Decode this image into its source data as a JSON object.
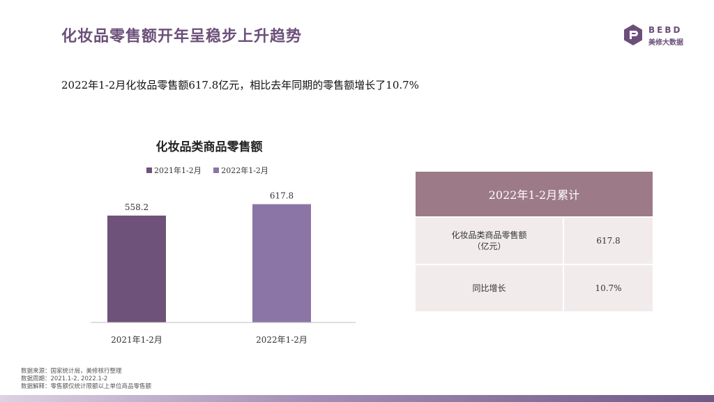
{
  "header": {
    "title": "化妆品零售额开年呈稳步上升趋势",
    "logo_text": "BEBD",
    "logo_sub": "美修大数据"
  },
  "summary": "2022年1-2月化妆品零售额617.8亿元，相比去年同期的零售额增长了10.7%",
  "chart_data": {
    "type": "bar",
    "title": "化妆品类商品零售额",
    "categories": [
      "2021年1-2月",
      "2022年1-2月"
    ],
    "values": [
      558.2,
      617.8
    ],
    "value_labels": [
      "558.2",
      "617.8"
    ],
    "legend": [
      "2021年1-2月",
      "2022年1-2月"
    ],
    "bar_colors": [
      "#6e5279",
      "#8b75a6"
    ],
    "ylim": [
      0,
      700
    ],
    "legend_position": "top",
    "grid": false
  },
  "table": {
    "header": "2022年1-2月累计",
    "rows": [
      {
        "label_line1": "化妆品类商品零售额",
        "label_line2": "（亿元）",
        "value": "617.8"
      },
      {
        "label_line1": "同比增长",
        "label_line2": "",
        "value": "10.7%"
      }
    ]
  },
  "footnotes": {
    "source": "数据来源：国家统计局，美修核行整理",
    "period": "数据周期：2021.1-2, 2022.1-2",
    "note": "数据解释：零售额仅统计限额以上单位商品零售额"
  },
  "colors": {
    "accent": "#6b4f7a",
    "table_header": "#9c7a88",
    "table_cell": "#f1eceb"
  }
}
